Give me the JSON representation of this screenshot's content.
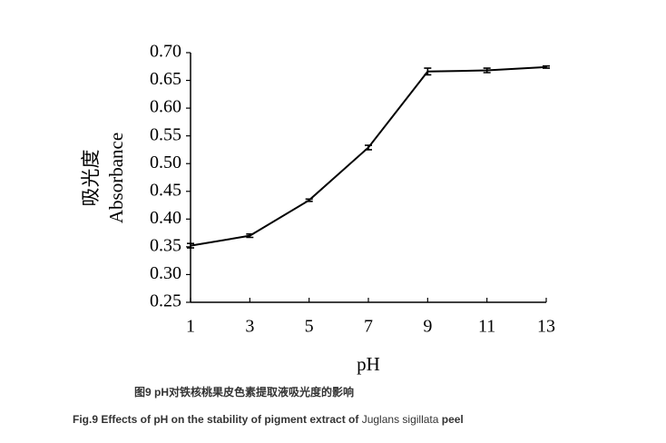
{
  "chart_data": {
    "type": "line",
    "y_label": [
      "吸光度",
      "Absorbance"
    ],
    "x_label": "pH",
    "caption_cn": "图9 pH对铁核桃果皮色素提取液吸光度的影响",
    "caption_en": [
      "Fig.9 Effects of pH on the stability of pigment extract of ",
      "Juglans sigillata",
      " peel"
    ],
    "x": [
      1,
      3,
      5,
      7,
      9,
      11,
      13
    ],
    "series": [
      {
        "color": "#000000",
        "values": [
          0.352,
          0.37,
          0.434,
          0.529,
          0.666,
          0.668,
          0.674
        ],
        "errors": [
          0.004,
          0.003,
          0.002,
          0.004,
          0.006,
          0.004,
          0.002
        ]
      }
    ],
    "xlim": [
      1,
      13
    ],
    "xticks": [
      1,
      3,
      5,
      7,
      9,
      11,
      13
    ],
    "ylim": [
      0.25,
      0.7
    ],
    "yticks": [
      {
        "value": 0.25,
        "label": "0.25"
      },
      {
        "value": 0.3,
        "label": "0.30"
      },
      {
        "value": 0.35,
        "label": "0.35"
      },
      {
        "value": 0.4,
        "label": "0.40"
      },
      {
        "value": 0.45,
        "label": "0.45"
      },
      {
        "value": 0.5,
        "label": "0.50"
      },
      {
        "value": 0.55,
        "label": "0.55"
      },
      {
        "value": 0.6,
        "label": "0.60"
      },
      {
        "value": 0.65,
        "label": "0.65"
      },
      {
        "value": 0.7,
        "label": "0.70"
      }
    ],
    "grid": false
  }
}
